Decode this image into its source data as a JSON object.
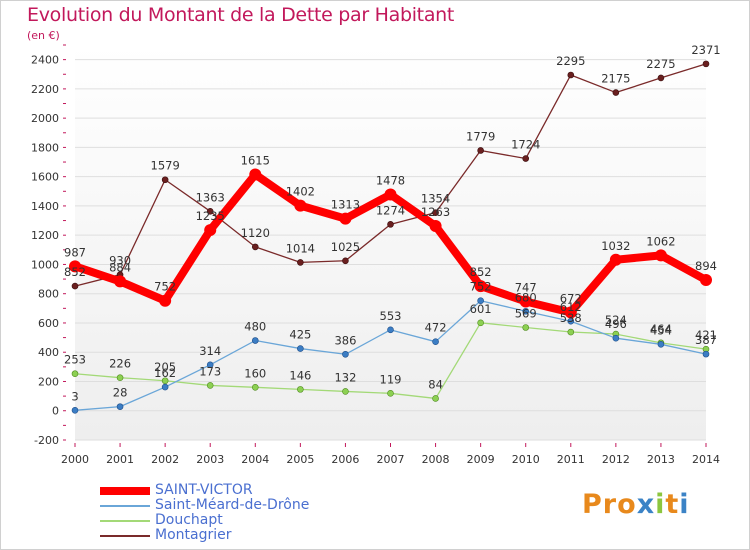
{
  "title": "Evolution du Montant de la Dette par Habitant",
  "unit_label": "(en €)",
  "brand": "Proxiti",
  "chart_data": {
    "type": "line",
    "x": [
      2000,
      2001,
      2002,
      2003,
      2004,
      2005,
      2006,
      2007,
      2008,
      2009,
      2010,
      2011,
      2012,
      2013,
      2014
    ],
    "ylim": [
      -200,
      2500
    ],
    "yticks": [
      -200,
      0,
      200,
      400,
      600,
      800,
      1000,
      1200,
      1400,
      1600,
      1800,
      2000,
      2200,
      2400
    ],
    "grid": "horizontal",
    "legend_position": "bottom-left",
    "series": [
      {
        "name": "SAINT-VICTOR",
        "color": "#ff0000",
        "values": [
          987,
          884,
          752,
          1235,
          1615,
          1402,
          1313,
          1478,
          1263,
          852,
          747,
          672,
          1032,
          1062,
          894
        ],
        "labels": [
          "987",
          "884",
          "752",
          "1235",
          "1615",
          "1402",
          "1313",
          "1478",
          "1263",
          "852",
          "747",
          "672",
          "1032",
          "1062",
          "894"
        ]
      },
      {
        "name": "Saint-Méard-de-Drône",
        "color": "#6aa6d8",
        "values": [
          3,
          28,
          162,
          314,
          480,
          425,
          386,
          553,
          472,
          752,
          680,
          612,
          496,
          454,
          387
        ],
        "labels": [
          "3",
          "28",
          "162",
          "314",
          "480",
          "425",
          "386",
          "553",
          "472",
          "752",
          "680",
          "612",
          "496",
          "454",
          "387"
        ]
      },
      {
        "name": "Douchapt",
        "color": "#a3d977",
        "values": [
          253,
          226,
          205,
          173,
          160,
          146,
          132,
          119,
          84,
          601,
          569,
          538,
          524,
          464,
          421
        ],
        "labels": [
          "253",
          "226",
          "205",
          "173",
          "160",
          "146",
          "132",
          "119",
          "84",
          "601",
          "569",
          "538",
          "524",
          "464",
          "421"
        ]
      },
      {
        "name": "Montagrier",
        "color": "#7a2a2a",
        "values": [
          852,
          930,
          1579,
          1363,
          1120,
          1014,
          1025,
          1274,
          1354,
          1779,
          1724,
          2295,
          2175,
          2275,
          2371
        ],
        "labels": [
          "852",
          "930",
          "1579",
          "1363",
          "1120",
          "1014",
          "1025",
          "1274",
          "1354",
          "1779",
          "1724",
          "2295",
          "2175",
          "2275",
          "2371"
        ]
      }
    ]
  }
}
